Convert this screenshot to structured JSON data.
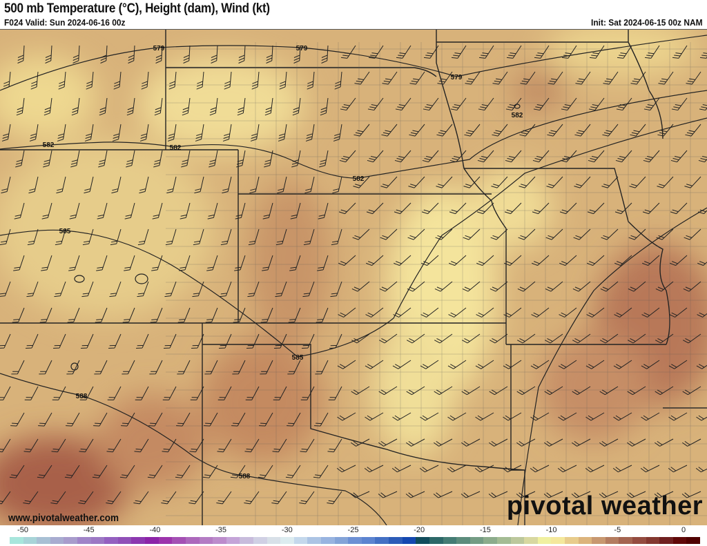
{
  "header": {
    "title": "500 mb Temperature (°C), Height (dam), Wind (kt)",
    "valid": "F024 Valid: Sun 2024-06-16 00z",
    "init": "Init: Sat 2024-06-15 00z NAM"
  },
  "map": {
    "contour_labels": [
      {
        "text": "579"
      },
      {
        "text": "579"
      },
      {
        "text": "579"
      },
      {
        "text": "582"
      },
      {
        "text": "582"
      },
      {
        "text": "582"
      },
      {
        "text": "582"
      },
      {
        "text": "585"
      },
      {
        "text": "585"
      },
      {
        "text": "588"
      },
      {
        "text": "588"
      }
    ]
  },
  "footer": {
    "website": "www.pivotalweather.com",
    "logo": "pivotal weather"
  },
  "colorbar": {
    "ticks": [
      "-50",
      "-45",
      "-40",
      "-35",
      "-30",
      "-25",
      "-20",
      "-15",
      "-10",
      "-5",
      "0"
    ],
    "colors": [
      "#a8e6dc",
      "#a8d4d8",
      "#a8c0d4",
      "#a8acd0",
      "#a89ccc",
      "#a084c8",
      "#9c78c4",
      "#9460c0",
      "#9050b8",
      "#8c38b0",
      "#8c24a8",
      "#9c34ac",
      "#a450b4",
      "#ac68bc",
      "#b47cc4",
      "#bc8ccc",
      "#c4a4d8",
      "#c8bcdc",
      "#d0d0e4",
      "#d8e0e8",
      "#dcecf0",
      "#c4d8ec",
      "#acc4e4",
      "#98b4e0",
      "#84a4d8",
      "#6c90d4",
      "#5c84d0",
      "#4470c4",
      "#2c5cb8",
      "#1448b0",
      "#104c5c",
      "#2c6868",
      "#447c74",
      "#5c8c7c",
      "#749c84",
      "#8cac8c",
      "#a4bc94",
      "#bcc89c",
      "#d8d8a0",
      "#f0f0a0",
      "#f4e89c",
      "#e8cc8c",
      "#dcb47c",
      "#c89870",
      "#b47c60",
      "#a46450",
      "#944c40",
      "#843830",
      "#702020",
      "#600808",
      "#500000"
    ]
  }
}
